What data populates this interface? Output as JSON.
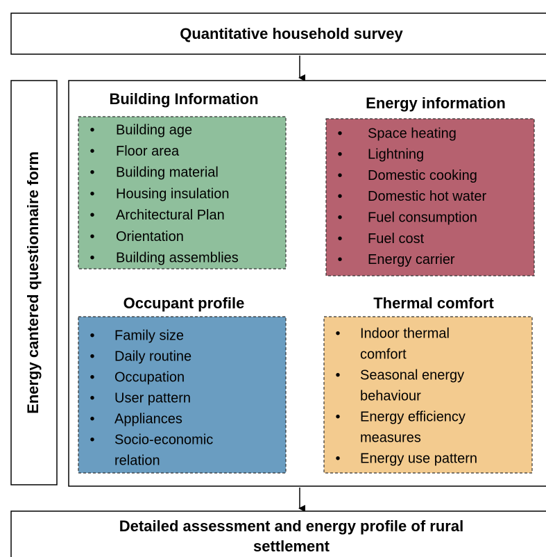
{
  "header": {
    "title": "Quantitative household survey"
  },
  "sidebar": {
    "label": "Energy cantered questionnaire form"
  },
  "panels": [
    {
      "title": "Building Information",
      "color": "#8fbf9c",
      "items": [
        [
          "Building age"
        ],
        [
          "Floor area"
        ],
        [
          "Building material"
        ],
        [
          "Housing insulation"
        ],
        [
          "Architectural Plan"
        ],
        [
          "Orientation"
        ],
        [
          "Building assemblies"
        ]
      ]
    },
    {
      "title": "Energy information",
      "color": "#b6616f",
      "items": [
        [
          "Space heating"
        ],
        [
          "Lightning"
        ],
        [
          "Domestic cooking"
        ],
        [
          "Domestic hot water"
        ],
        [
          "Fuel consumption"
        ],
        [
          "Fuel cost"
        ],
        [
          "Energy carrier"
        ]
      ]
    },
    {
      "title": "Occupant profile",
      "color": "#6a9dc1",
      "items": [
        [
          "Family size"
        ],
        [
          "Daily routine"
        ],
        [
          "Occupation"
        ],
        [
          "User pattern"
        ],
        [
          "Appliances"
        ],
        [
          "Socio-economic",
          "relation"
        ]
      ]
    },
    {
      "title": "Thermal comfort",
      "color": "#f3cb8f",
      "items": [
        [
          "Indoor thermal",
          "comfort"
        ],
        [
          "Seasonal energy",
          "behaviour"
        ],
        [
          "Energy efficiency",
          "measures"
        ],
        [
          "Energy use pattern"
        ]
      ]
    }
  ],
  "footer": {
    "lines": [
      "Detailed assessment and energy profile of rural",
      "settlement"
    ]
  }
}
